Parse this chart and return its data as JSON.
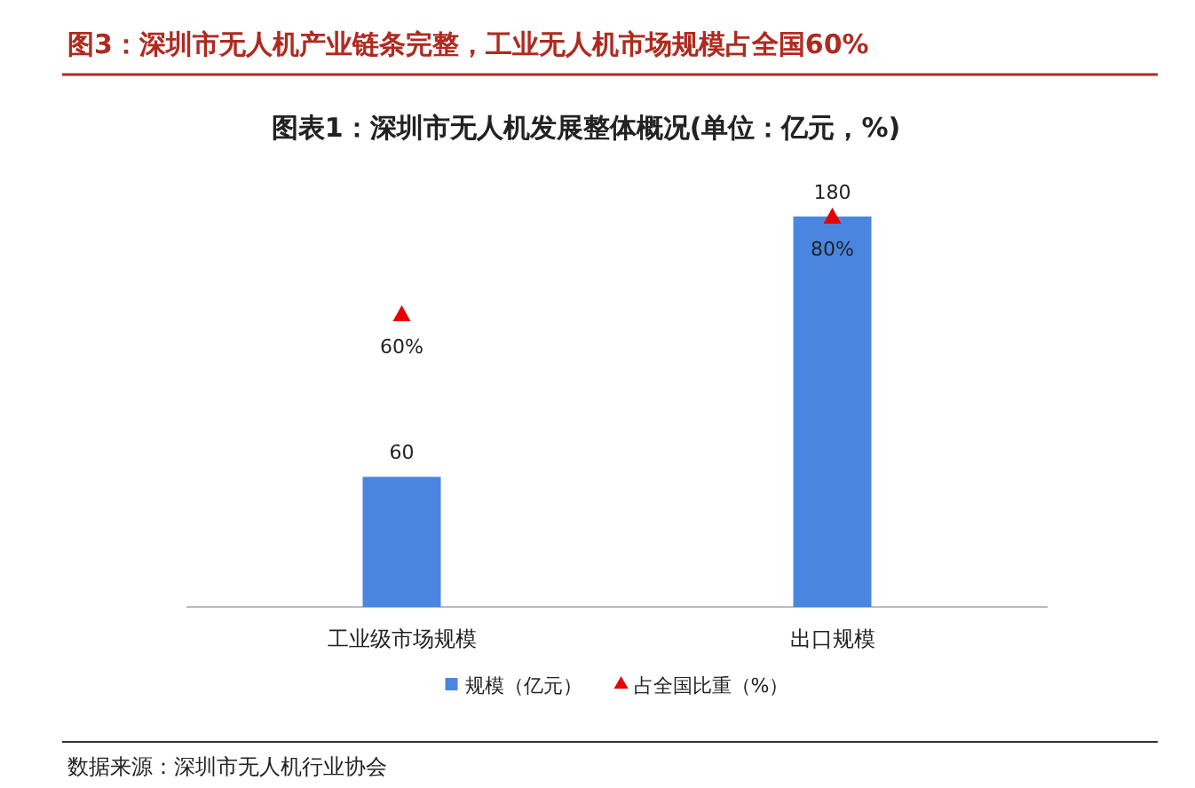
{
  "chart_data": {
    "type": "bar",
    "title": "图3：深圳市无人机产业链条完整，工业无人机市场规模占全国60%",
    "subtitle": "图表1：深圳市无人机发展整体概况(单位：亿元，%)",
    "categories": [
      "工业级市场规模",
      "出口规模"
    ],
    "series": [
      {
        "name": "规模（亿元）",
        "color": "#4a86e0",
        "values": [
          60,
          180
        ],
        "value_labels": [
          "60",
          "180"
        ]
      },
      {
        "name": "占全国比重（%）",
        "type": "scatter",
        "axis": "y2",
        "marker": "triangle",
        "color": "#e60000",
        "values": [
          60,
          80
        ],
        "value_labels": [
          "60%",
          "80%"
        ]
      }
    ],
    "legend": "bottom",
    "annotations": [
      "数据来源：深圳市无人机行业协会"
    ]
  }
}
